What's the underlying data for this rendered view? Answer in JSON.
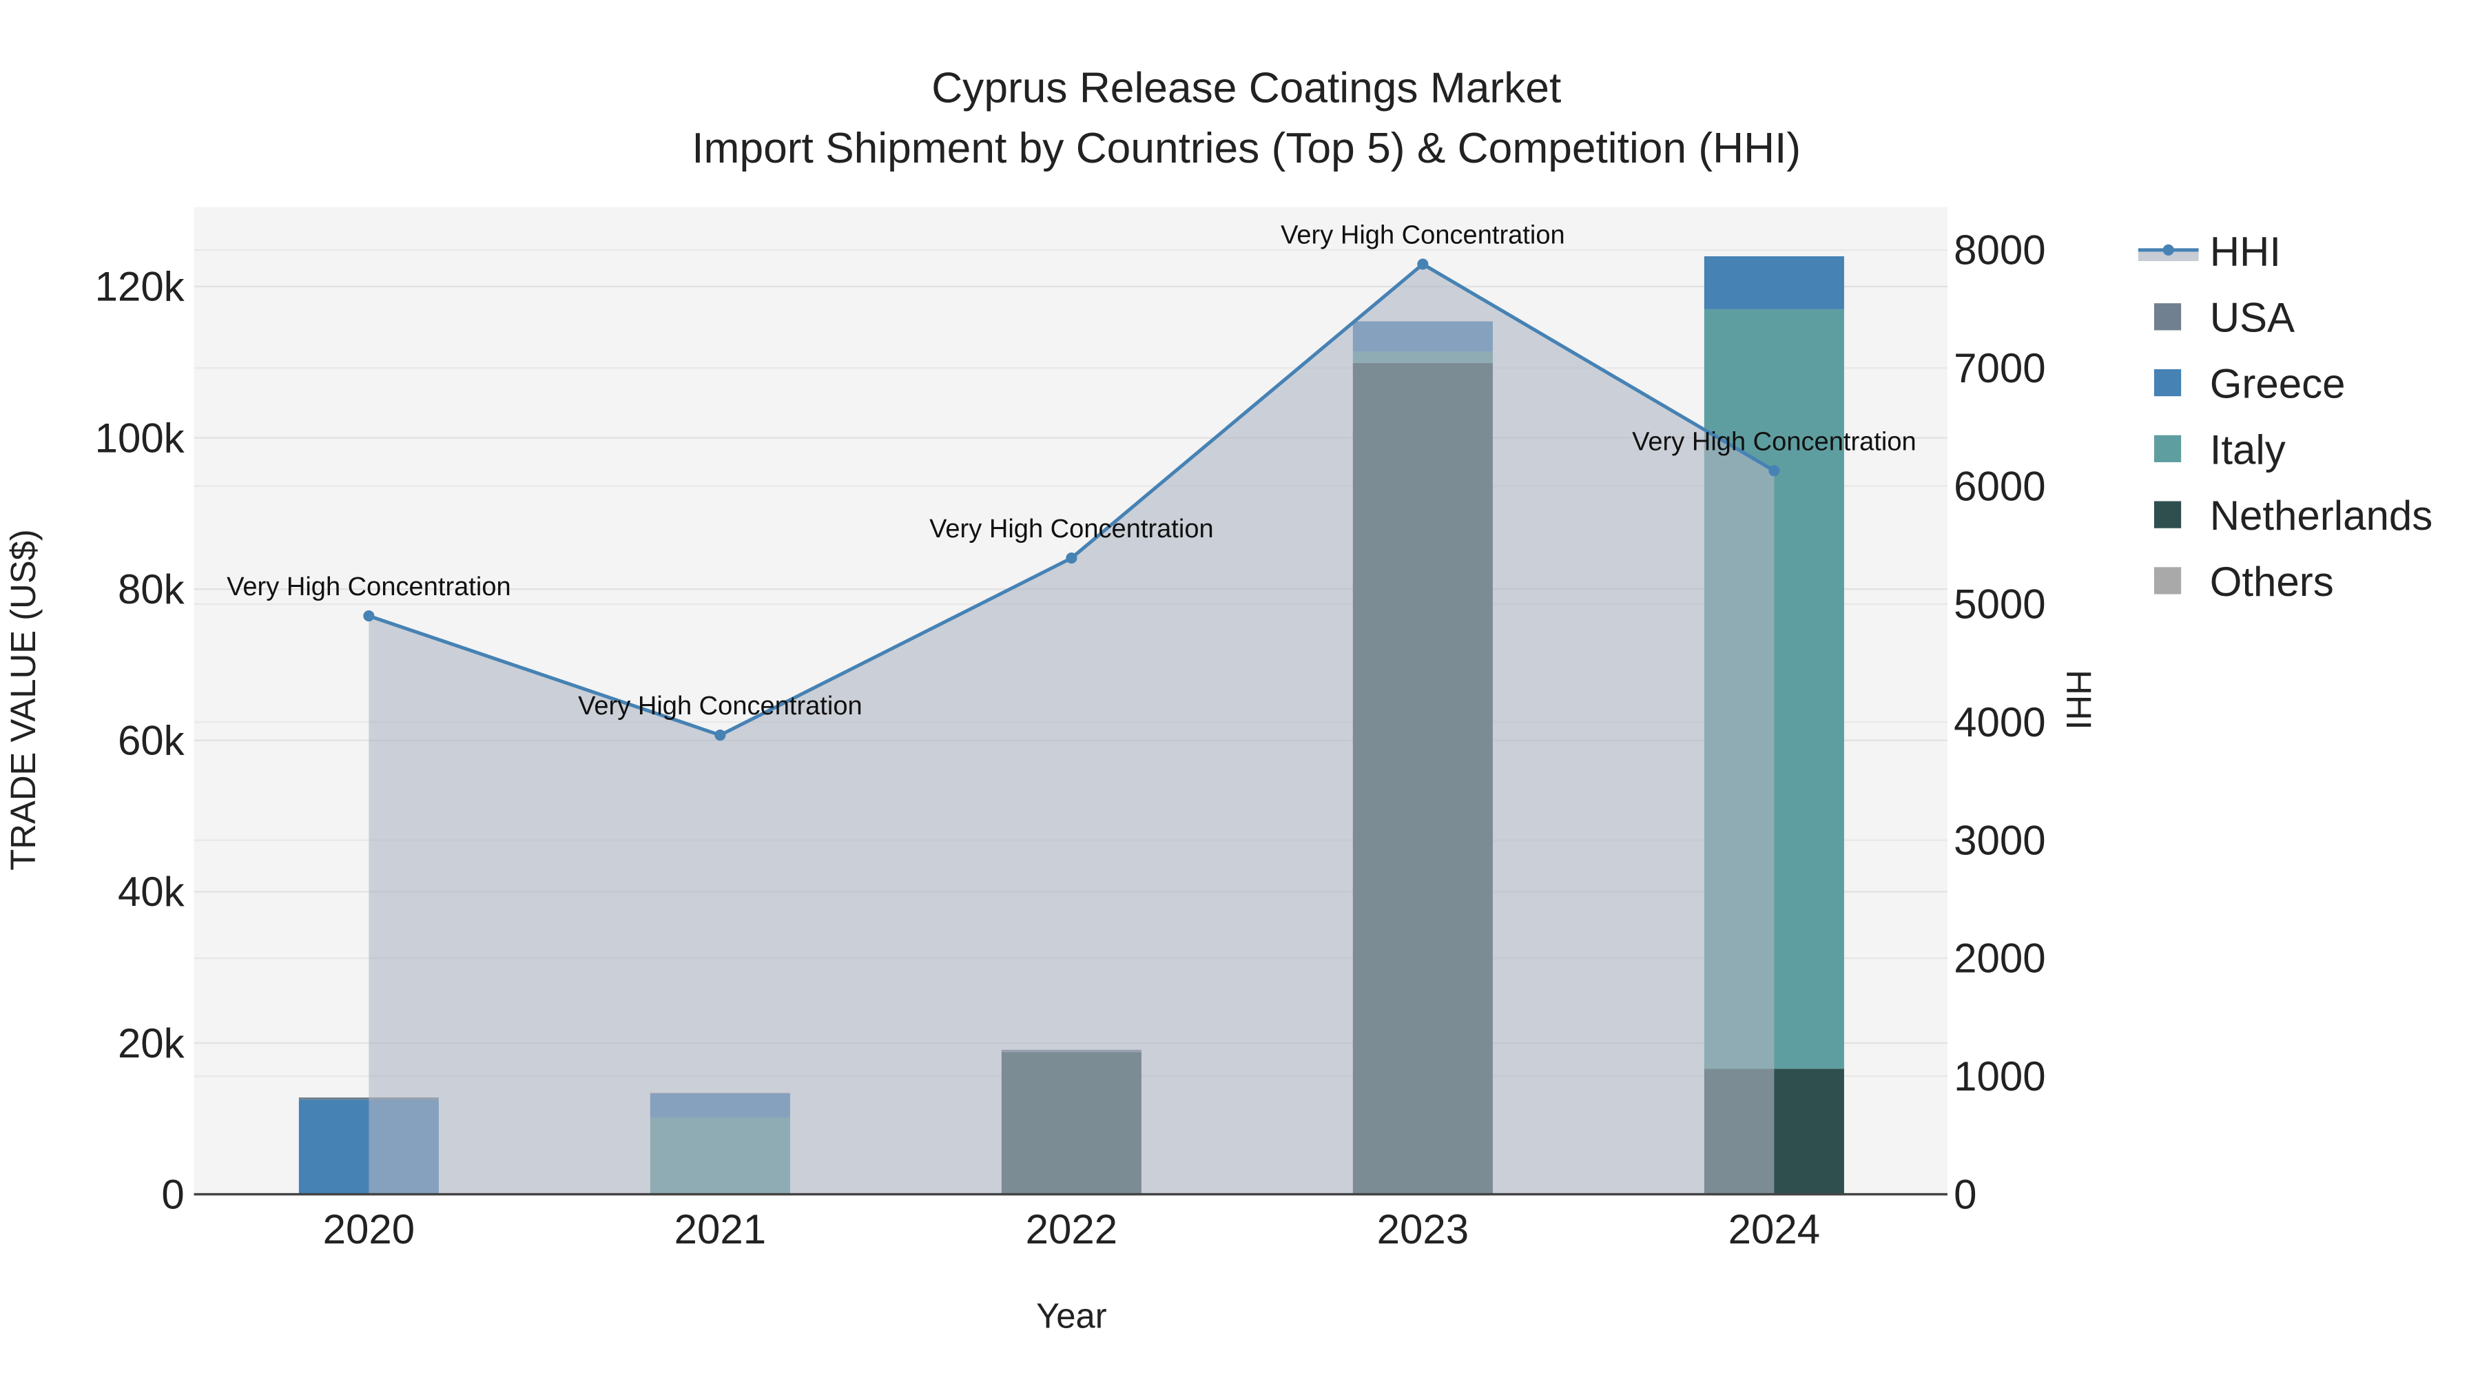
{
  "chart_data": {
    "type": "bar",
    "title": "Cyprus Release Coatings Market",
    "subtitle": "Import Shipment by Countries (Top 5) & Competition (HHI)",
    "xlabel": "Year",
    "ylabel": "TRADE VALUE (US$)",
    "y2label": "HHI",
    "categories": [
      "2020",
      "2021",
      "2022",
      "2023",
      "2024"
    ],
    "ylim": [
      0,
      130000
    ],
    "y_ticks": [
      0,
      20000,
      40000,
      60000,
      80000,
      100000,
      120000
    ],
    "y_tick_labels": [
      "0",
      "20k",
      "40k",
      "60k",
      "80k",
      "100k",
      "120k"
    ],
    "y2lim": [
      0,
      8400
    ],
    "y2_ticks": [
      0,
      1000,
      2000,
      3000,
      4000,
      5000,
      6000,
      7000,
      8000
    ],
    "y2_tick_labels": [
      "0",
      "1000",
      "2000",
      "3000",
      "4000",
      "5000",
      "6000",
      "7000",
      "8000"
    ],
    "barmode": "stack",
    "series": [
      {
        "name": "Netherlands",
        "color": "#2F4F4F",
        "values": [
          0,
          0,
          18800,
          109900,
          16600
        ]
      },
      {
        "name": "Italy",
        "color": "#5F9EA0",
        "values": [
          0,
          10100,
          0,
          1500,
          100400
        ]
      },
      {
        "name": "Greece",
        "color": "#4682B4",
        "values": [
          12500,
          3200,
          0,
          4000,
          7000
        ]
      },
      {
        "name": "USA",
        "color": "#708090",
        "values": [
          300,
          100,
          300,
          0,
          0
        ]
      },
      {
        "name": "Others",
        "color": "#A9A9A9",
        "values": [
          0,
          0,
          0,
          0,
          0
        ]
      }
    ],
    "line": {
      "name": "HHI",
      "color": "#4682B4",
      "values": [
        4900,
        3890,
        5390,
        7880,
        6130
      ],
      "labels": [
        "Very High Concentration",
        "Very High Concentration",
        "Very High Concentration",
        "Very High Concentration",
        "Very High Concentration"
      ]
    },
    "legend_order": [
      "HHI",
      "USA",
      "Greece",
      "Italy",
      "Netherlands",
      "Others"
    ],
    "legend_placement": "top-right",
    "grid": true
  }
}
